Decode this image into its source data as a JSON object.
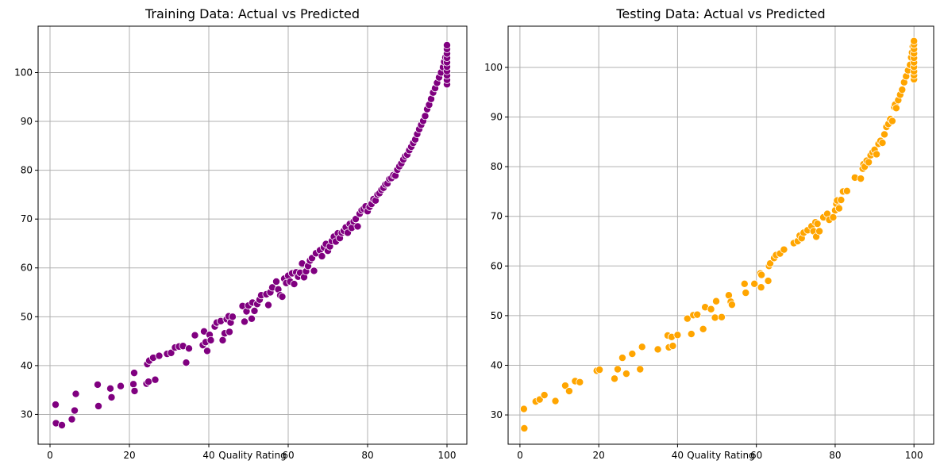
{
  "chart_data": [
    {
      "type": "scatter",
      "title": "Training Data: Actual vs Predicted",
      "xlabel": "Quality Rating",
      "ylabel": "",
      "xlim": [
        -3,
        105
      ],
      "ylim": [
        23.9,
        109.5
      ],
      "xticks": [
        0,
        20,
        40,
        60,
        80,
        100
      ],
      "yticks": [
        30,
        40,
        50,
        60,
        70,
        80,
        90,
        100
      ],
      "grid": true,
      "color": "#800080",
      "points": [
        [
          1.4,
          32.0
        ],
        [
          1.5,
          28.2
        ],
        [
          3.0,
          27.8
        ],
        [
          5.5,
          29.0
        ],
        [
          6.2,
          30.8
        ],
        [
          6.5,
          34.2
        ],
        [
          12.0,
          36.1
        ],
        [
          12.2,
          31.7
        ],
        [
          15.2,
          35.3
        ],
        [
          15.5,
          33.5
        ],
        [
          17.8,
          35.8
        ],
        [
          21.0,
          36.2
        ],
        [
          21.2,
          38.5
        ],
        [
          21.3,
          34.8
        ],
        [
          24.3,
          36.3
        ],
        [
          24.5,
          40.3
        ],
        [
          24.8,
          36.7
        ],
        [
          25.0,
          41.0
        ],
        [
          26.0,
          41.6
        ],
        [
          26.5,
          37.1
        ],
        [
          27.5,
          42.0
        ],
        [
          29.5,
          42.4
        ],
        [
          30.5,
          42.6
        ],
        [
          31.5,
          43.7
        ],
        [
          32.5,
          43.9
        ],
        [
          33.5,
          44.0
        ],
        [
          34.3,
          40.6
        ],
        [
          35.0,
          43.5
        ],
        [
          36.5,
          46.2
        ],
        [
          38.5,
          44.2
        ],
        [
          38.8,
          47.0
        ],
        [
          39.2,
          44.8
        ],
        [
          39.6,
          43.0
        ],
        [
          40.2,
          46.3
        ],
        [
          40.5,
          45.2
        ],
        [
          41.5,
          48.0
        ],
        [
          42.0,
          48.8
        ],
        [
          43.0,
          49.1
        ],
        [
          43.5,
          45.2
        ],
        [
          44.0,
          46.6
        ],
        [
          44.5,
          49.5
        ],
        [
          45.0,
          50.1
        ],
        [
          45.2,
          46.9
        ],
        [
          45.5,
          48.8
        ],
        [
          46.0,
          50.0
        ],
        [
          48.5,
          52.2
        ],
        [
          49.0,
          49.0
        ],
        [
          49.5,
          51.1
        ],
        [
          50.0,
          52.3
        ],
        [
          50.8,
          49.6
        ],
        [
          51.0,
          52.9
        ],
        [
          51.5,
          51.2
        ],
        [
          52.2,
          52.6
        ],
        [
          52.8,
          53.5
        ],
        [
          53.2,
          54.4
        ],
        [
          54.5,
          54.6
        ],
        [
          55.0,
          52.4
        ],
        [
          55.5,
          55.0
        ],
        [
          56.0,
          56.0
        ],
        [
          57.0,
          57.2
        ],
        [
          57.5,
          55.6
        ],
        [
          58.0,
          54.4
        ],
        [
          58.5,
          54.1
        ],
        [
          59.0,
          57.8
        ],
        [
          59.5,
          56.9
        ],
        [
          60.0,
          58.4
        ],
        [
          60.5,
          57.2
        ],
        [
          61.0,
          58.9
        ],
        [
          61.5,
          56.7
        ],
        [
          62.0,
          59.1
        ],
        [
          62.5,
          58.2
        ],
        [
          63.0,
          59.0
        ],
        [
          63.5,
          60.9
        ],
        [
          64.0,
          58.1
        ],
        [
          64.5,
          59.3
        ],
        [
          65.0,
          60.4
        ],
        [
          65.5,
          61.5
        ],
        [
          66.0,
          62.0
        ],
        [
          66.5,
          59.4
        ],
        [
          67.0,
          63.0
        ],
        [
          68.0,
          63.6
        ],
        [
          68.5,
          62.4
        ],
        [
          69.0,
          64.2
        ],
        [
          69.5,
          64.9
        ],
        [
          70.0,
          63.5
        ],
        [
          70.5,
          64.4
        ],
        [
          71.0,
          65.5
        ],
        [
          71.5,
          66.4
        ],
        [
          72.0,
          65.4
        ],
        [
          72.5,
          67.1
        ],
        [
          73.0,
          66.1
        ],
        [
          73.5,
          67.2
        ],
        [
          74.0,
          67.6
        ],
        [
          74.5,
          68.3
        ],
        [
          75.0,
          67.2
        ],
        [
          75.5,
          69.0
        ],
        [
          76.0,
          68.2
        ],
        [
          76.5,
          69.5
        ],
        [
          77.0,
          70.0
        ],
        [
          77.5,
          68.5
        ],
        [
          78.0,
          71.1
        ],
        [
          78.5,
          71.8
        ],
        [
          79.0,
          72.1
        ],
        [
          79.5,
          72.6
        ],
        [
          80.0,
          71.6
        ],
        [
          80.5,
          72.5
        ],
        [
          81.0,
          73.1
        ],
        [
          81.5,
          74.1
        ],
        [
          82.0,
          73.8
        ],
        [
          82.5,
          75.0
        ],
        [
          83.0,
          75.3
        ],
        [
          83.5,
          76.0
        ],
        [
          84.0,
          76.4
        ],
        [
          84.5,
          77.1
        ],
        [
          85.0,
          77.3
        ],
        [
          85.5,
          78.2
        ],
        [
          86.0,
          78.4
        ],
        [
          86.5,
          79.0
        ],
        [
          87.0,
          78.9
        ],
        [
          87.5,
          80.1
        ],
        [
          88.0,
          80.8
        ],
        [
          88.5,
          81.4
        ],
        [
          89.0,
          82.2
        ],
        [
          89.5,
          82.9
        ],
        [
          90.0,
          83.2
        ],
        [
          90.5,
          84.1
        ],
        [
          91.0,
          84.8
        ],
        [
          91.5,
          85.6
        ],
        [
          92.0,
          86.3
        ],
        [
          92.5,
          87.4
        ],
        [
          93.0,
          88.4
        ],
        [
          93.5,
          89.3
        ],
        [
          94.0,
          90.1
        ],
        [
          94.5,
          91.1
        ],
        [
          95.0,
          92.5
        ],
        [
          95.5,
          93.4
        ],
        [
          96.0,
          94.6
        ],
        [
          96.5,
          95.9
        ],
        [
          97.0,
          96.8
        ],
        [
          97.5,
          97.9
        ],
        [
          98.0,
          99.0
        ],
        [
          98.5,
          100.0
        ],
        [
          99.0,
          101.1
        ],
        [
          99.3,
          102.2
        ],
        [
          99.6,
          103.1
        ],
        [
          100.0,
          97.6
        ],
        [
          100.0,
          98.5
        ],
        [
          100.0,
          99.4
        ],
        [
          100.0,
          100.3
        ],
        [
          100.0,
          101.2
        ],
        [
          100.0,
          102.1
        ],
        [
          100.0,
          103.0
        ],
        [
          100.0,
          103.9
        ],
        [
          100.0,
          104.8
        ],
        [
          100.0,
          105.6
        ]
      ]
    },
    {
      "type": "scatter",
      "title": "Testing Data: Actual vs Predicted",
      "xlabel": "Quality Rating",
      "ylabel": "",
      "xlim": [
        -3,
        105
      ],
      "ylim": [
        24.1,
        108.3
      ],
      "xticks": [
        0,
        20,
        40,
        60,
        80,
        100
      ],
      "yticks": [
        30,
        40,
        50,
        60,
        70,
        80,
        90,
        100
      ],
      "grid": true,
      "color": "#ffa500",
      "points": [
        [
          1.0,
          31.2
        ],
        [
          1.1,
          27.3
        ],
        [
          4.0,
          32.7
        ],
        [
          5.0,
          33.1
        ],
        [
          6.2,
          34.0
        ],
        [
          9.0,
          32.8
        ],
        [
          11.5,
          35.9
        ],
        [
          12.5,
          34.8
        ],
        [
          14.0,
          36.8
        ],
        [
          15.2,
          36.6
        ],
        [
          19.5,
          38.9
        ],
        [
          20.2,
          39.1
        ],
        [
          24.0,
          37.3
        ],
        [
          24.8,
          39.2
        ],
        [
          26.0,
          41.5
        ],
        [
          27.0,
          38.3
        ],
        [
          28.5,
          42.3
        ],
        [
          30.5,
          39.2
        ],
        [
          31.0,
          43.7
        ],
        [
          35.0,
          43.2
        ],
        [
          37.5,
          46.0
        ],
        [
          37.8,
          43.6
        ],
        [
          38.5,
          45.7
        ],
        [
          38.8,
          43.9
        ],
        [
          40.0,
          46.1
        ],
        [
          42.5,
          49.4
        ],
        [
          43.5,
          46.3
        ],
        [
          44.0,
          50.1
        ],
        [
          45.0,
          50.2
        ],
        [
          46.5,
          47.3
        ],
        [
          47.0,
          51.7
        ],
        [
          48.5,
          51.3
        ],
        [
          49.5,
          49.6
        ],
        [
          49.8,
          52.9
        ],
        [
          51.2,
          49.7
        ],
        [
          53.0,
          54.1
        ],
        [
          53.5,
          52.8
        ],
        [
          53.8,
          52.2
        ],
        [
          57.0,
          56.4
        ],
        [
          57.3,
          54.6
        ],
        [
          59.5,
          56.4
        ],
        [
          61.0,
          58.5
        ],
        [
          61.2,
          55.7
        ],
        [
          61.3,
          58.2
        ],
        [
          63.0,
          57.0
        ],
        [
          63.2,
          60.0
        ],
        [
          63.5,
          60.5
        ],
        [
          64.5,
          61.6
        ],
        [
          65.0,
          62.2
        ],
        [
          66.0,
          62.5
        ],
        [
          67.0,
          63.3
        ],
        [
          69.5,
          64.6
        ],
        [
          70.5,
          65.0
        ],
        [
          71.0,
          66.1
        ],
        [
          71.5,
          65.6
        ],
        [
          72.0,
          66.7
        ],
        [
          73.0,
          67.2
        ],
        [
          74.0,
          68.0
        ],
        [
          74.5,
          67.0
        ],
        [
          75.0,
          68.8
        ],
        [
          75.2,
          65.9
        ],
        [
          75.5,
          68.5
        ],
        [
          76.0,
          67.0
        ],
        [
          77.0,
          69.8
        ],
        [
          78.0,
          70.5
        ],
        [
          78.5,
          69.3
        ],
        [
          79.5,
          69.8
        ],
        [
          80.0,
          71.2
        ],
        [
          80.3,
          72.5
        ],
        [
          80.5,
          73.2
        ],
        [
          81.0,
          71.6
        ],
        [
          81.5,
          73.3
        ],
        [
          82.0,
          75.0
        ],
        [
          83.0,
          75.1
        ],
        [
          85.0,
          77.8
        ],
        [
          86.5,
          77.6
        ],
        [
          87.0,
          79.6
        ],
        [
          87.2,
          80.5
        ],
        [
          87.5,
          80.0
        ],
        [
          88.0,
          81.2
        ],
        [
          88.5,
          80.9
        ],
        [
          89.0,
          82.3
        ],
        [
          89.5,
          82.9
        ],
        [
          90.0,
          83.4
        ],
        [
          90.5,
          82.5
        ],
        [
          91.0,
          84.6
        ],
        [
          91.5,
          85.2
        ],
        [
          92.0,
          84.8
        ],
        [
          92.5,
          86.5
        ],
        [
          93.0,
          88.0
        ],
        [
          93.5,
          88.6
        ],
        [
          94.0,
          89.6
        ],
        [
          94.5,
          89.2
        ],
        [
          95.0,
          92.0
        ],
        [
          95.2,
          92.5
        ],
        [
          95.5,
          91.8
        ],
        [
          96.0,
          93.4
        ],
        [
          96.5,
          94.5
        ],
        [
          97.0,
          95.5
        ],
        [
          97.5,
          97.0
        ],
        [
          98.0,
          98.2
        ],
        [
          98.5,
          99.4
        ],
        [
          99.0,
          100.5
        ],
        [
          99.3,
          102.0
        ],
        [
          99.5,
          103.0
        ],
        [
          99.7,
          104.2
        ],
        [
          100.0,
          97.6
        ],
        [
          100.0,
          98.4
        ],
        [
          100.0,
          99.2
        ],
        [
          100.0,
          100.1
        ],
        [
          100.0,
          101.0
        ],
        [
          100.0,
          101.9
        ],
        [
          100.0,
          102.8
        ],
        [
          100.0,
          103.7
        ],
        [
          100.0,
          104.6
        ],
        [
          100.0,
          105.3
        ]
      ]
    }
  ]
}
